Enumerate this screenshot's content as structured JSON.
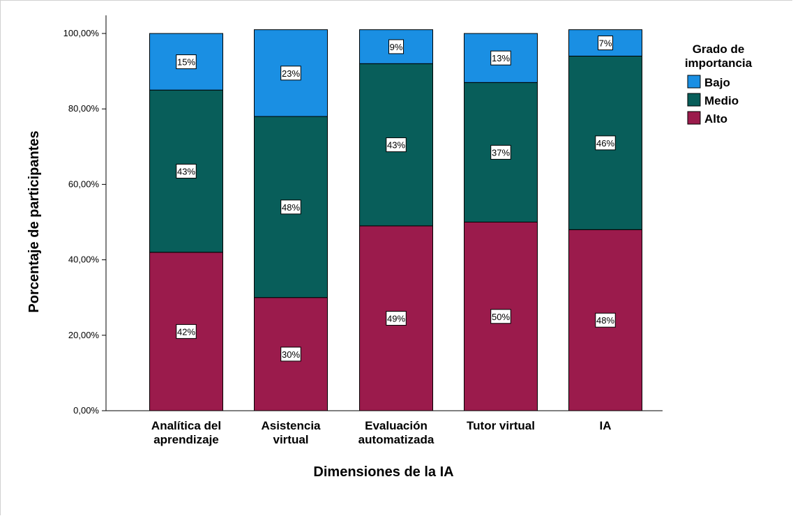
{
  "chart_data": {
    "type": "bar",
    "stacked": true,
    "categories": [
      [
        "Analítica del",
        "aprendizaje"
      ],
      [
        "Asistencia",
        "virtual"
      ],
      [
        "Evaluación",
        "automatizada"
      ],
      [
        "Tutor virtual"
      ],
      [
        "IA"
      ]
    ],
    "series": [
      {
        "name": "Alto",
        "values": [
          42,
          30,
          49,
          50,
          48
        ],
        "labels": [
          "42%",
          "30%",
          "49%",
          "50%",
          "48%"
        ],
        "color": "#9b1b4c"
      },
      {
        "name": "Medio",
        "values": [
          43,
          48,
          43,
          37,
          46
        ],
        "labels": [
          "43%",
          "48%",
          "43%",
          "37%",
          "46%"
        ],
        "color": "#085e5a"
      },
      {
        "name": "Bajo",
        "values": [
          15,
          23,
          9,
          13,
          7
        ],
        "labels": [
          "15%",
          "23%",
          "9%",
          "13%",
          "7%"
        ],
        "color": "#1a8fe3"
      }
    ],
    "legend_order": [
      "Bajo",
      "Medio",
      "Alto"
    ],
    "legend_title": [
      "Grado de",
      "importancia"
    ],
    "legend_position": "right",
    "xlabel": "Dimensiones de la IA",
    "ylabel": "Porcentaje de participantes",
    "ylim": [
      0,
      100
    ],
    "yticks": [
      0,
      20,
      40,
      60,
      80,
      100
    ],
    "ytick_labels": [
      "0,00%",
      "20,00%",
      "40,00%",
      "60,00%",
      "80,00%",
      "100,00%"
    ],
    "grid": false
  }
}
